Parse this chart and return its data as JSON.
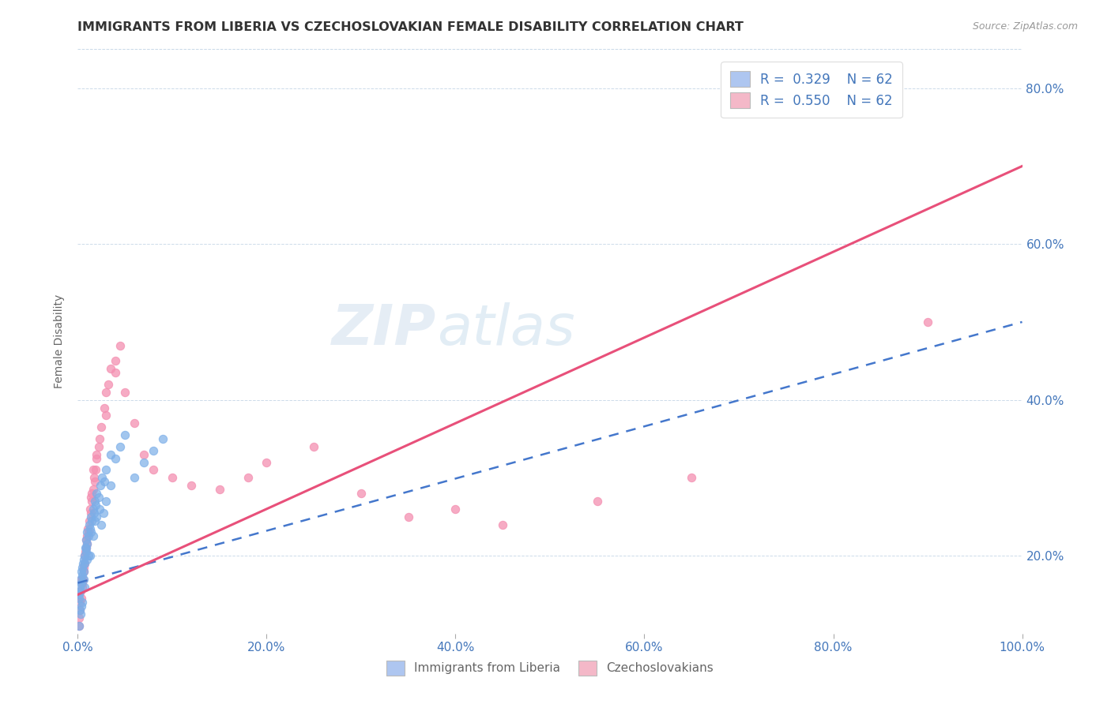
{
  "title": "IMMIGRANTS FROM LIBERIA VS CZECHOSLOVAKIAN FEMALE DISABILITY CORRELATION CHART",
  "source_text": "Source: ZipAtlas.com",
  "ylabel": "Female Disability",
  "xlim": [
    0.0,
    100.0
  ],
  "ylim": [
    10.0,
    85.0
  ],
  "x_tick_labels": [
    "0.0%",
    "20.0%",
    "40.0%",
    "60.0%",
    "80.0%",
    "100.0%"
  ],
  "x_tick_vals": [
    0,
    20,
    40,
    60,
    80,
    100
  ],
  "y_tick_labels": [
    "20.0%",
    "40.0%",
    "60.0%",
    "80.0%"
  ],
  "y_tick_vals": [
    20,
    40,
    60,
    80
  ],
  "legend_blue_label": "R =  0.329    N = 62",
  "legend_pink_label": "R =  0.550    N = 62",
  "legend_blue_color": "#aec6f0",
  "legend_pink_color": "#f4b8c8",
  "scatter_blue_color": "#7baee8",
  "scatter_pink_color": "#f48fb1",
  "trend_blue_color": "#4477cc",
  "trend_pink_color": "#e8507a",
  "watermark_zip": "ZIP",
  "watermark_atlas": "atlas",
  "bottom_legend_blue": "Immigrants from Liberia",
  "bottom_legend_pink": "Czechoslovakians",
  "blue_x": [
    0.1,
    0.15,
    0.2,
    0.25,
    0.3,
    0.35,
    0.4,
    0.45,
    0.5,
    0.55,
    0.6,
    0.65,
    0.7,
    0.75,
    0.8,
    0.85,
    0.9,
    0.95,
    1.0,
    1.1,
    1.2,
    1.3,
    1.4,
    1.5,
    1.6,
    1.7,
    1.8,
    1.9,
    2.0,
    2.2,
    2.4,
    2.6,
    2.8,
    3.0,
    3.5,
    4.0,
    4.5,
    5.0,
    6.0,
    7.0,
    8.0,
    9.0,
    0.2,
    0.3,
    0.5,
    0.7,
    1.0,
    1.3,
    1.6,
    2.0,
    2.5,
    3.0,
    0.15,
    0.35,
    0.6,
    0.9,
    1.1,
    1.4,
    1.8,
    2.3,
    2.7,
    3.5
  ],
  "blue_y": [
    15.0,
    14.5,
    16.0,
    15.5,
    17.0,
    16.5,
    18.0,
    17.5,
    18.5,
    19.0,
    18.0,
    19.5,
    20.0,
    19.0,
    21.0,
    20.5,
    22.0,
    21.5,
    23.0,
    22.5,
    24.0,
    23.5,
    25.0,
    24.5,
    26.0,
    25.5,
    27.0,
    26.5,
    28.0,
    27.5,
    29.0,
    30.0,
    29.5,
    31.0,
    33.0,
    32.5,
    34.0,
    35.5,
    30.0,
    32.0,
    33.5,
    35.0,
    13.0,
    12.5,
    14.0,
    16.0,
    19.5,
    20.0,
    22.5,
    25.0,
    24.0,
    27.0,
    11.0,
    13.5,
    17.0,
    21.0,
    20.0,
    23.0,
    24.5,
    26.0,
    25.5,
    29.0
  ],
  "pink_x": [
    0.1,
    0.2,
    0.3,
    0.4,
    0.5,
    0.6,
    0.7,
    0.8,
    0.9,
    1.0,
    1.1,
    1.2,
    1.3,
    1.4,
    1.5,
    1.6,
    1.7,
    1.8,
    1.9,
    2.0,
    2.2,
    2.5,
    2.8,
    3.0,
    3.5,
    4.0,
    4.5,
    5.0,
    6.0,
    7.0,
    8.0,
    10.0,
    12.0,
    15.0,
    18.0,
    20.0,
    25.0,
    30.0,
    35.0,
    40.0,
    45.0,
    55.0,
    65.0,
    0.25,
    0.45,
    0.65,
    0.85,
    1.05,
    1.35,
    1.65,
    2.3,
    3.2,
    0.15,
    0.35,
    0.55,
    0.75,
    1.0,
    1.5,
    2.0,
    3.0,
    4.0,
    90.0
  ],
  "pink_y": [
    12.0,
    14.0,
    15.5,
    17.0,
    16.5,
    18.0,
    19.0,
    20.5,
    22.0,
    21.5,
    23.0,
    24.5,
    26.0,
    25.5,
    27.0,
    28.5,
    30.0,
    29.5,
    31.0,
    32.5,
    34.0,
    36.5,
    39.0,
    41.0,
    44.0,
    45.0,
    47.0,
    41.0,
    37.0,
    33.0,
    31.0,
    30.0,
    29.0,
    28.5,
    30.0,
    32.0,
    34.0,
    28.0,
    25.0,
    26.0,
    24.0,
    27.0,
    30.0,
    13.0,
    16.0,
    18.5,
    21.0,
    23.5,
    27.5,
    31.0,
    35.0,
    42.0,
    11.0,
    14.5,
    17.0,
    20.0,
    22.5,
    28.0,
    33.0,
    38.0,
    43.5,
    50.0
  ],
  "pink_trend_x0": 0,
  "pink_trend_y0": 15.0,
  "pink_trend_x1": 100,
  "pink_trend_y1": 70.0,
  "blue_trend_x0": 0,
  "blue_trend_y0": 16.5,
  "blue_trend_x1": 100,
  "blue_trend_y1": 50.0
}
